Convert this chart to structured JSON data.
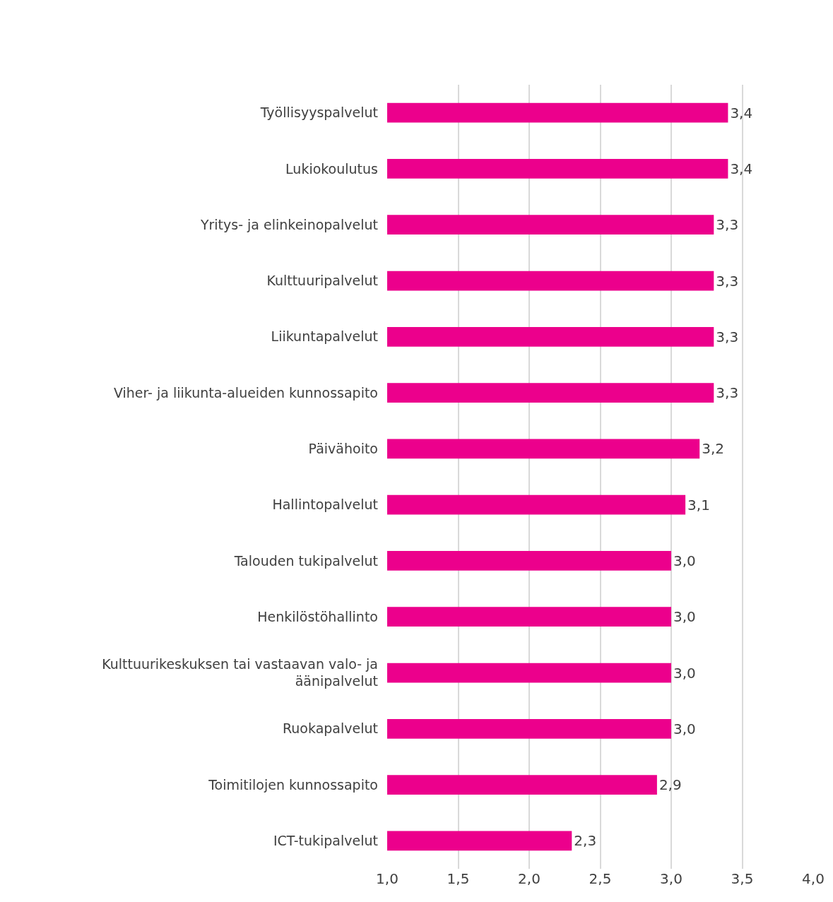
{
  "chart_data": {
    "type": "bar",
    "orientation": "horizontal",
    "categories": [
      "Työllisyyspalvelut",
      "Lukiokoulutus",
      "Yritys- ja elinkeinopalvelut",
      "Kulttuuripalvelut",
      "Liikuntapalvelut",
      "Viher- ja liikunta-alueiden kunnossapito",
      "Päivähoito",
      "Hallintopalvelut",
      "Talouden tukipalvelut",
      "Henkilöstöhallinto",
      "Kulttuurikeskuksen tai vastaavan valo- ja äänipalvelut",
      "Ruokapalvelut",
      "Toimitilojen kunnossapito",
      "ICT-tukipalvelut"
    ],
    "values": [
      3.4,
      3.4,
      3.3,
      3.3,
      3.3,
      3.3,
      3.2,
      3.1,
      3.0,
      3.0,
      3.0,
      3.0,
      2.9,
      2.3
    ],
    "color": "#ec008c",
    "value_labels": [
      "3,4",
      "3,4",
      "3,3",
      "3,3",
      "3,3",
      "3,3",
      "3,2",
      "3,1",
      "3,0",
      "3,0",
      "3,0",
      "3,0",
      "2,9",
      "2,3"
    ],
    "xlim": [
      1,
      4
    ],
    "xticks": [
      {
        "value": 1,
        "label": "1,0"
      },
      {
        "value": 1.5,
        "label": "1,5"
      },
      {
        "value": 2,
        "label": "2,0"
      },
      {
        "value": 2.5,
        "label": "2,5"
      },
      {
        "value": 3,
        "label": "3,0"
      },
      {
        "value": 3.5,
        "label": "3,5"
      },
      {
        "value": 4,
        "label": "4,0"
      }
    ],
    "grid": "x"
  }
}
